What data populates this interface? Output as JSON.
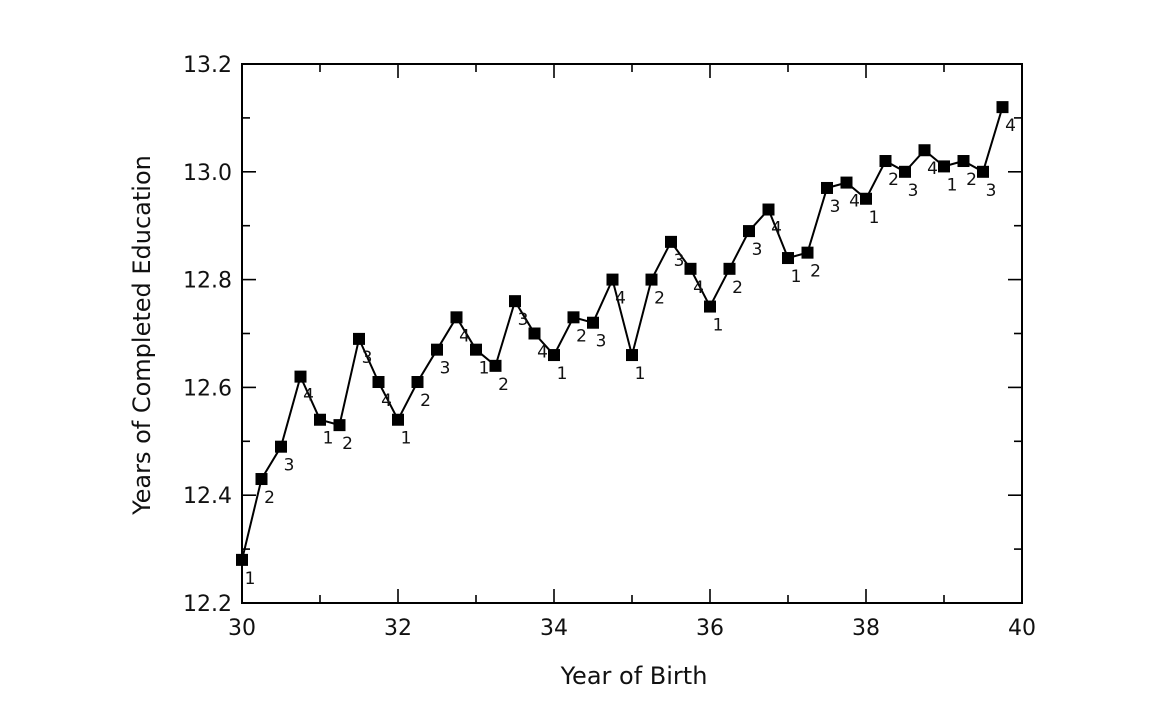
{
  "chart_data": {
    "type": "line",
    "title": "",
    "xlabel": "Year of Birth",
    "ylabel": "Years of Completed Education",
    "xlim": [
      30,
      40
    ],
    "ylim": [
      12.2,
      13.2
    ],
    "x_ticks": [
      30,
      32,
      34,
      36,
      38,
      40
    ],
    "x_tick_labels": [
      "30",
      "32",
      "34",
      "36",
      "38",
      "40"
    ],
    "y_ticks": [
      12.2,
      12.4,
      12.6,
      12.8,
      13.0,
      13.2
    ],
    "y_tick_labels": [
      "12.2",
      "12.4",
      "12.6",
      "12.8",
      "13.0",
      "13.2"
    ],
    "marker": "square",
    "grid": false,
    "series": [
      {
        "x": [
          30.0,
          30.25,
          30.5,
          30.75,
          31.0,
          31.25,
          31.5,
          31.75,
          32.0,
          32.25,
          32.5,
          32.75,
          33.0,
          33.25,
          33.5,
          33.75,
          34.0,
          34.25,
          34.5,
          34.75,
          35.0,
          35.25,
          35.5,
          35.75,
          36.0,
          36.25,
          36.5,
          36.75,
          37.0,
          37.25,
          37.5,
          37.75,
          38.0,
          38.25,
          38.5,
          38.75,
          39.0,
          39.25,
          39.5,
          39.75
        ],
        "values": [
          12.28,
          12.43,
          12.49,
          12.62,
          12.54,
          12.53,
          12.69,
          12.61,
          12.54,
          12.61,
          12.67,
          12.73,
          12.67,
          12.64,
          12.76,
          12.7,
          12.66,
          12.73,
          12.72,
          12.8,
          12.66,
          12.8,
          12.87,
          12.82,
          12.75,
          12.82,
          12.89,
          12.93,
          12.84,
          12.85,
          12.97,
          12.98,
          12.95,
          13.02,
          13.0,
          13.04,
          13.01,
          13.02,
          13.0,
          13.12
        ],
        "point_labels": [
          "1",
          "2",
          "3",
          "4",
          "1",
          "2",
          "3",
          "4",
          "1",
          "2",
          "3",
          "4",
          "1",
          "2",
          "3",
          "4",
          "1",
          "2",
          "3",
          "4",
          "1",
          "2",
          "3",
          "4",
          "1",
          "2",
          "3",
          "4",
          "1",
          "2",
          "3",
          "4",
          "1",
          "2",
          "3",
          "4",
          "1",
          "2",
          "3",
          "4"
        ]
      }
    ]
  }
}
